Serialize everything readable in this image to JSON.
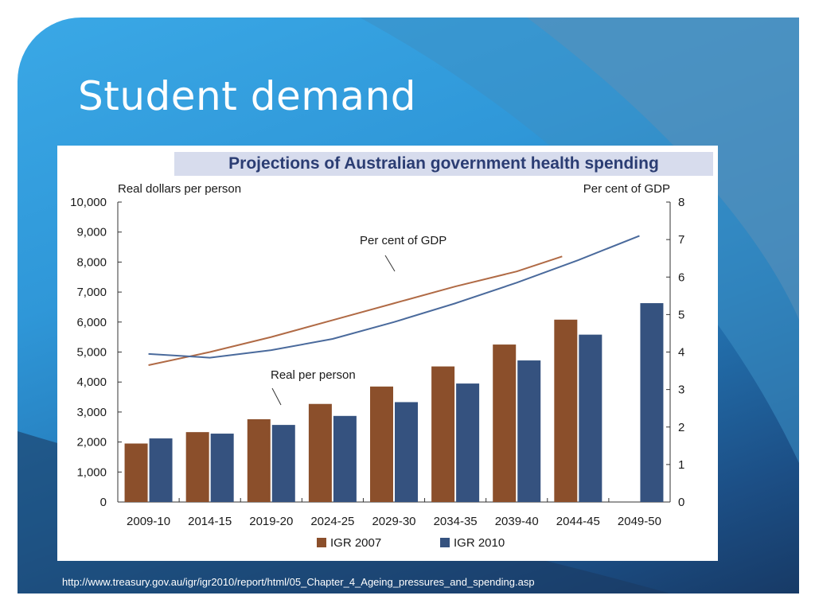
{
  "slide": {
    "title": "Student demand",
    "source_url": "http://www.treasury.gov.au/igr/igr2010/report/html/05_Chapter_4_Ageing_pressures_and_spending.asp"
  },
  "colors": {
    "igr2007": "#8b4f2b",
    "igr2010": "#35527f",
    "line2007": "#b06a45",
    "line2010": "#4a6a9c"
  },
  "chart_data": {
    "type": "bar",
    "title": "Projections of Australian government health spending",
    "ylabel": "Real dollars per person",
    "y2label": "Per cent of GDP",
    "categories": [
      "2009-10",
      "2014-15",
      "2019-20",
      "2024-25",
      "2029-30",
      "2034-35",
      "2039-40",
      "2044-45",
      "2049-50"
    ],
    "ylim": [
      0,
      10000
    ],
    "y2lim": [
      0,
      8
    ],
    "yticks": [
      "10,000",
      "9,000",
      "8,000",
      "7,000",
      "6,000",
      "5,000",
      "4,000",
      "3,000",
      "2,000",
      "1,000",
      "0"
    ],
    "y2ticks": [
      "8",
      "7",
      "6",
      "5",
      "4",
      "3",
      "2",
      "1",
      "0"
    ],
    "series": [
      {
        "name": "IGR 2007",
        "values": [
          1950,
          2330,
          2760,
          3270,
          3850,
          4520,
          5250,
          6080,
          null
        ]
      },
      {
        "name": "IGR 2010",
        "values": [
          2120,
          2280,
          2570,
          2870,
          3330,
          3950,
          4720,
          5580,
          6630
        ]
      }
    ],
    "lines": [
      {
        "series": "IGR 2007",
        "axis": "right",
        "values": [
          3.65,
          4.0,
          4.4,
          4.85,
          5.3,
          5.75,
          6.15,
          6.55,
          null
        ]
      },
      {
        "series": "IGR 2010",
        "axis": "right",
        "values": [
          3.95,
          3.85,
          4.05,
          4.35,
          4.8,
          5.3,
          5.85,
          6.45,
          7.1
        ]
      }
    ],
    "annotations": [
      "Per cent of GDP",
      "Real per person"
    ],
    "legend": "bottom-center",
    "grid": false
  }
}
